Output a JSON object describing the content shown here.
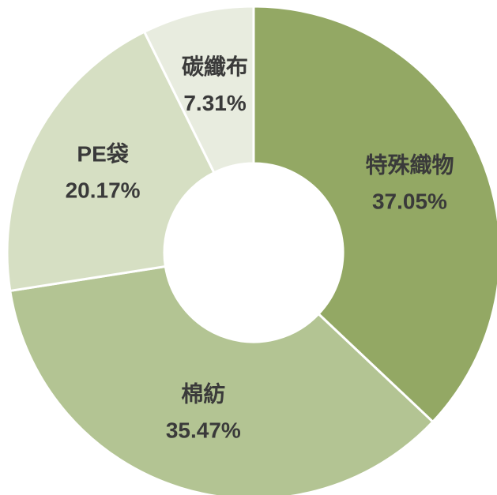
{
  "chart_data": {
    "type": "donut",
    "categories": [
      "特殊織物",
      "棉紡",
      "PE袋",
      "碳纖布"
    ],
    "values": [
      37.05,
      35.47,
      20.17,
      7.31
    ],
    "value_labels": [
      "37.05%",
      "35.47%",
      "20.17%",
      "7.31%"
    ],
    "colors": [
      "#93a864",
      "#b3c493",
      "#d6dfc3",
      "#e8ecdf"
    ]
  }
}
